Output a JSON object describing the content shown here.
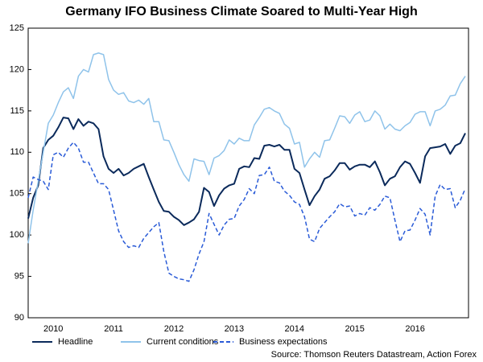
{
  "chart_data": {
    "type": "line",
    "title": "Germany IFO Business Climate Soared to Multi-Year High",
    "source": "Source: Thomson Reuters Datastream, Action Forex",
    "categories": [
      null,
      null,
      null,
      null,
      null,
      "2010",
      null,
      null,
      null,
      null,
      null,
      null,
      null,
      null,
      null,
      null,
      null,
      "2011",
      null,
      null,
      null,
      null,
      null,
      null,
      null,
      null,
      null,
      null,
      null,
      "2012",
      null,
      null,
      null,
      null,
      null,
      null,
      null,
      null,
      null,
      null,
      null,
      "2013",
      null,
      null,
      null,
      null,
      null,
      null,
      null,
      null,
      null,
      null,
      null,
      "2014",
      null,
      null,
      null,
      null,
      null,
      null,
      null,
      null,
      null,
      null,
      null,
      "2015",
      null,
      null,
      null,
      null,
      null,
      null,
      null,
      null,
      null,
      null,
      null,
      "2016",
      null,
      null,
      null,
      null,
      null,
      null,
      null,
      null,
      null,
      null
    ],
    "series": [
      {
        "name": "Headline",
        "color": "#0b2a5b",
        "dashed": false,
        "values": [
          102,
          104.5,
          106,
          110.5,
          111.5,
          112,
          113,
          114.2,
          114.1,
          112.8,
          114,
          113.2,
          113.7,
          113.5,
          112.8,
          109.5,
          108,
          107.5,
          108,
          107.2,
          107.5,
          108,
          108.3,
          108.6,
          107,
          105.5,
          104,
          102.9,
          102.8,
          102.2,
          101.8,
          101.2,
          101.5,
          101.9,
          102.8,
          105.7,
          105.2,
          103.5,
          104.8,
          105.6,
          106,
          106.2,
          108,
          108.3,
          108.2,
          109.3,
          109.2,
          110.8,
          110.9,
          110.7,
          110.9,
          110.3,
          110.3,
          108,
          107.5,
          105.5,
          103.6,
          104.7,
          105.5,
          106.8,
          107.1,
          107.8,
          108.7,
          108.7,
          107.9,
          108.3,
          108.5,
          108.5,
          108.2,
          108.9,
          107.6,
          106,
          106.8,
          107.1,
          108.2,
          108.9,
          108.6,
          107.5,
          106.3,
          109.5,
          110.5,
          110.6,
          110.7,
          111,
          109.8,
          110.8,
          111.1,
          112.3
        ]
      },
      {
        "name": "Current conditions",
        "color": "#8fc3ea",
        "dashed": false,
        "values": [
          99,
          103,
          106.5,
          110,
          113.5,
          114.5,
          116,
          117.3,
          117.8,
          116.5,
          119.2,
          120,
          119.7,
          121.8,
          122,
          121.8,
          118.8,
          117.5,
          117,
          117.2,
          116.2,
          116,
          116.3,
          115.8,
          116.5,
          113.7,
          113.7,
          111.5,
          111.4,
          110,
          108.5,
          107.3,
          106.5,
          109.2,
          109,
          108.9,
          107.3,
          109.3,
          109.6,
          110.2,
          111.5,
          111,
          111.7,
          111.4,
          111.4,
          113.3,
          114.2,
          115.2,
          115.4,
          115,
          114.7,
          113.4,
          112.9,
          111,
          111.2,
          108.2,
          109.2,
          110,
          109.4,
          111.4,
          111.5,
          112.9,
          114.4,
          114.3,
          113.5,
          114.5,
          114.9,
          113.7,
          113.9,
          115,
          114.4,
          112.8,
          113.4,
          112.8,
          112.6,
          113.2,
          113.6,
          114.6,
          114.9,
          114.9,
          113.2,
          115,
          115.2,
          115.7,
          116.8,
          116.9,
          118.3,
          119.2
        ]
      },
      {
        "name": "Business expectations",
        "color": "#2a5bd7",
        "dashed": true,
        "values": [
          104.5,
          107,
          106.7,
          106.5,
          105.5,
          109.7,
          110,
          109.4,
          110.5,
          111.2,
          110.5,
          108.8,
          108.8,
          107.5,
          106.2,
          106.2,
          105.5,
          103,
          100.5,
          99.2,
          98.5,
          98.7,
          98.5,
          99.6,
          100.3,
          101,
          101.5,
          98,
          95.4,
          95,
          94.7,
          94.6,
          94.4,
          95.8,
          97.7,
          99.2,
          102.6,
          101.3,
          100,
          101.2,
          101.9,
          102,
          103.5,
          104.3,
          105.6,
          105,
          107.2,
          107.3,
          108.2,
          106.5,
          106.3,
          105.3,
          104.8,
          104,
          103.7,
          102.2,
          99.5,
          99.2,
          100.8,
          101.5,
          102.2,
          102.8,
          103.8,
          103.4,
          103.5,
          102.3,
          102.6,
          102.4,
          103.3,
          103,
          103.7,
          104.7,
          104.5,
          101.8,
          99.2,
          100.5,
          100.6,
          101.8,
          103.2,
          102.5,
          100,
          104.7,
          106.1,
          105.5,
          105.6,
          103.3,
          104.2,
          105.6
        ]
      }
    ],
    "ylim": [
      90,
      125
    ],
    "yticks": [
      90,
      95,
      100,
      105,
      110,
      115,
      120,
      125
    ],
    "grid": false,
    "legend": "bottom"
  }
}
